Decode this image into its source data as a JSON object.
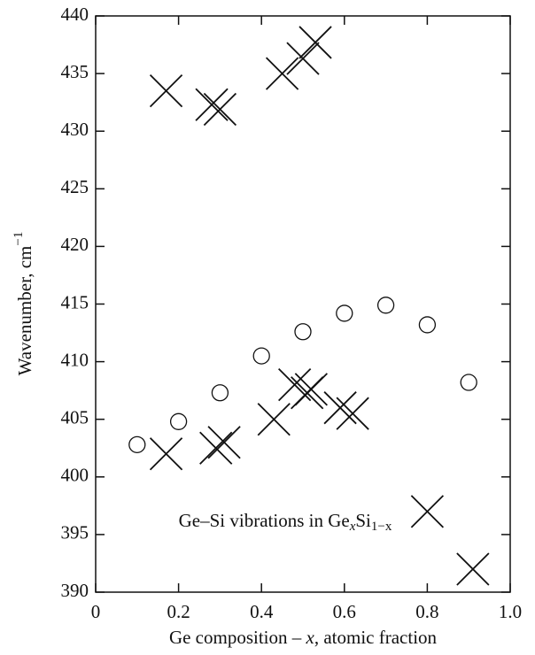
{
  "chart_data": {
    "type": "scatter",
    "xlabel": [
      "Ge composition – ",
      "x",
      ", atomic fraction"
    ],
    "ylabel": {
      "text": "Wavenumber, cm",
      "superscript": "−1"
    },
    "annotation": [
      "Ge–Si vibrations in Ge",
      "x",
      "Si",
      "1−x"
    ],
    "xlim": [
      0,
      1
    ],
    "xticks": [
      0,
      0.2,
      0.4,
      0.6,
      0.8,
      {
        "value": 1,
        "label": "1.0"
      }
    ],
    "ylim": [
      390,
      440
    ],
    "yticks": [
      390,
      395,
      400,
      405,
      410,
      415,
      420,
      425,
      430,
      435,
      440
    ],
    "grid": false,
    "color": "#111111",
    "series": [
      {
        "marker": "circle",
        "x": [
          0.1,
          0.2,
          0.3,
          0.4,
          0.5,
          0.6,
          0.7,
          0.8,
          0.9
        ],
        "values": [
          402.8,
          404.8,
          407.3,
          410.5,
          412.6,
          414.2,
          414.9,
          413.2,
          408.2
        ]
      },
      {
        "marker": "cross",
        "x": [
          0.17,
          0.29,
          0.31,
          0.43,
          0.48,
          0.51,
          0.52,
          0.59,
          0.62,
          0.8,
          0.91,
          0.17,
          0.28,
          0.3,
          0.45,
          0.5,
          0.53
        ],
        "values": [
          402.0,
          402.5,
          403.0,
          405.0,
          408.0,
          407.3,
          407.6,
          406.0,
          405.5,
          397.0,
          392.0,
          433.5,
          432.3,
          431.9,
          435.0,
          436.3,
          437.7
        ]
      }
    ]
  }
}
